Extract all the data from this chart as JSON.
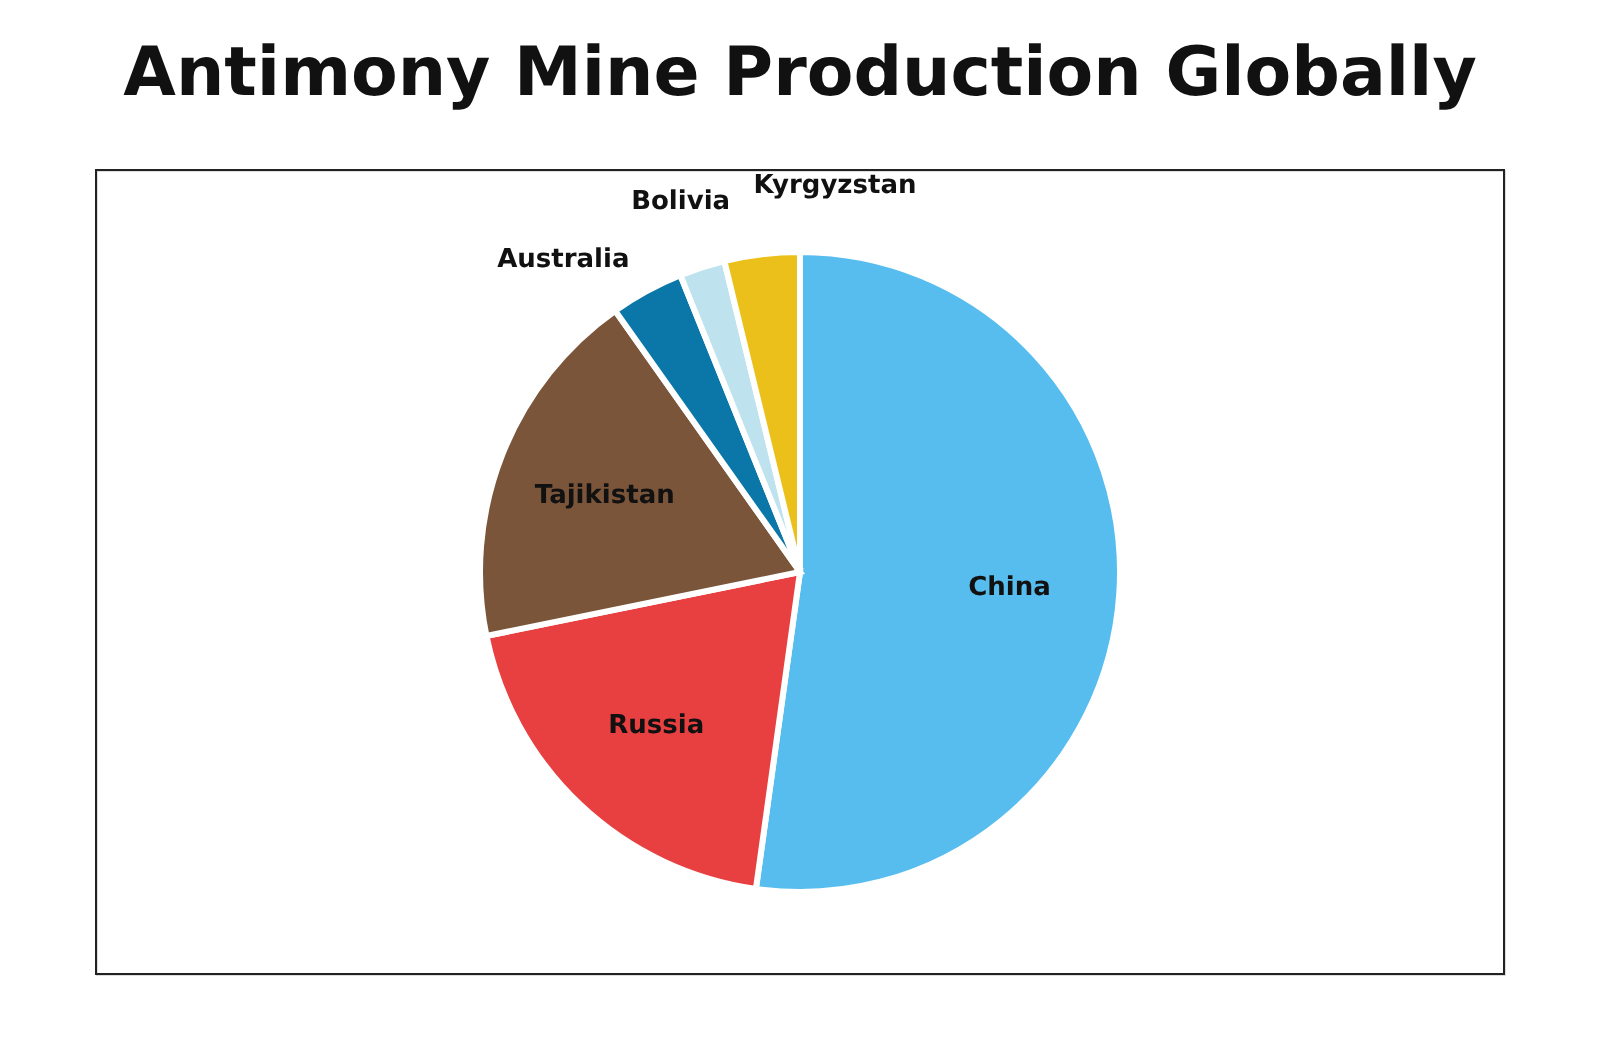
{
  "chart_data": {
    "type": "pie",
    "title": "Antimony Mine Production Globally",
    "categories": [
      "China",
      "Russia",
      "Tajikistan",
      "Australia",
      "Bolivia",
      "Kyrgyzstan"
    ],
    "values": [
      52.2,
      19.6,
      18.4,
      3.7,
      2.3,
      3.8
    ],
    "colors": [
      "#56bdee",
      "#e84040",
      "#7b553a",
      "#0a77a8",
      "#bfe3ee",
      "#ecc01a"
    ],
    "legend": false
  }
}
